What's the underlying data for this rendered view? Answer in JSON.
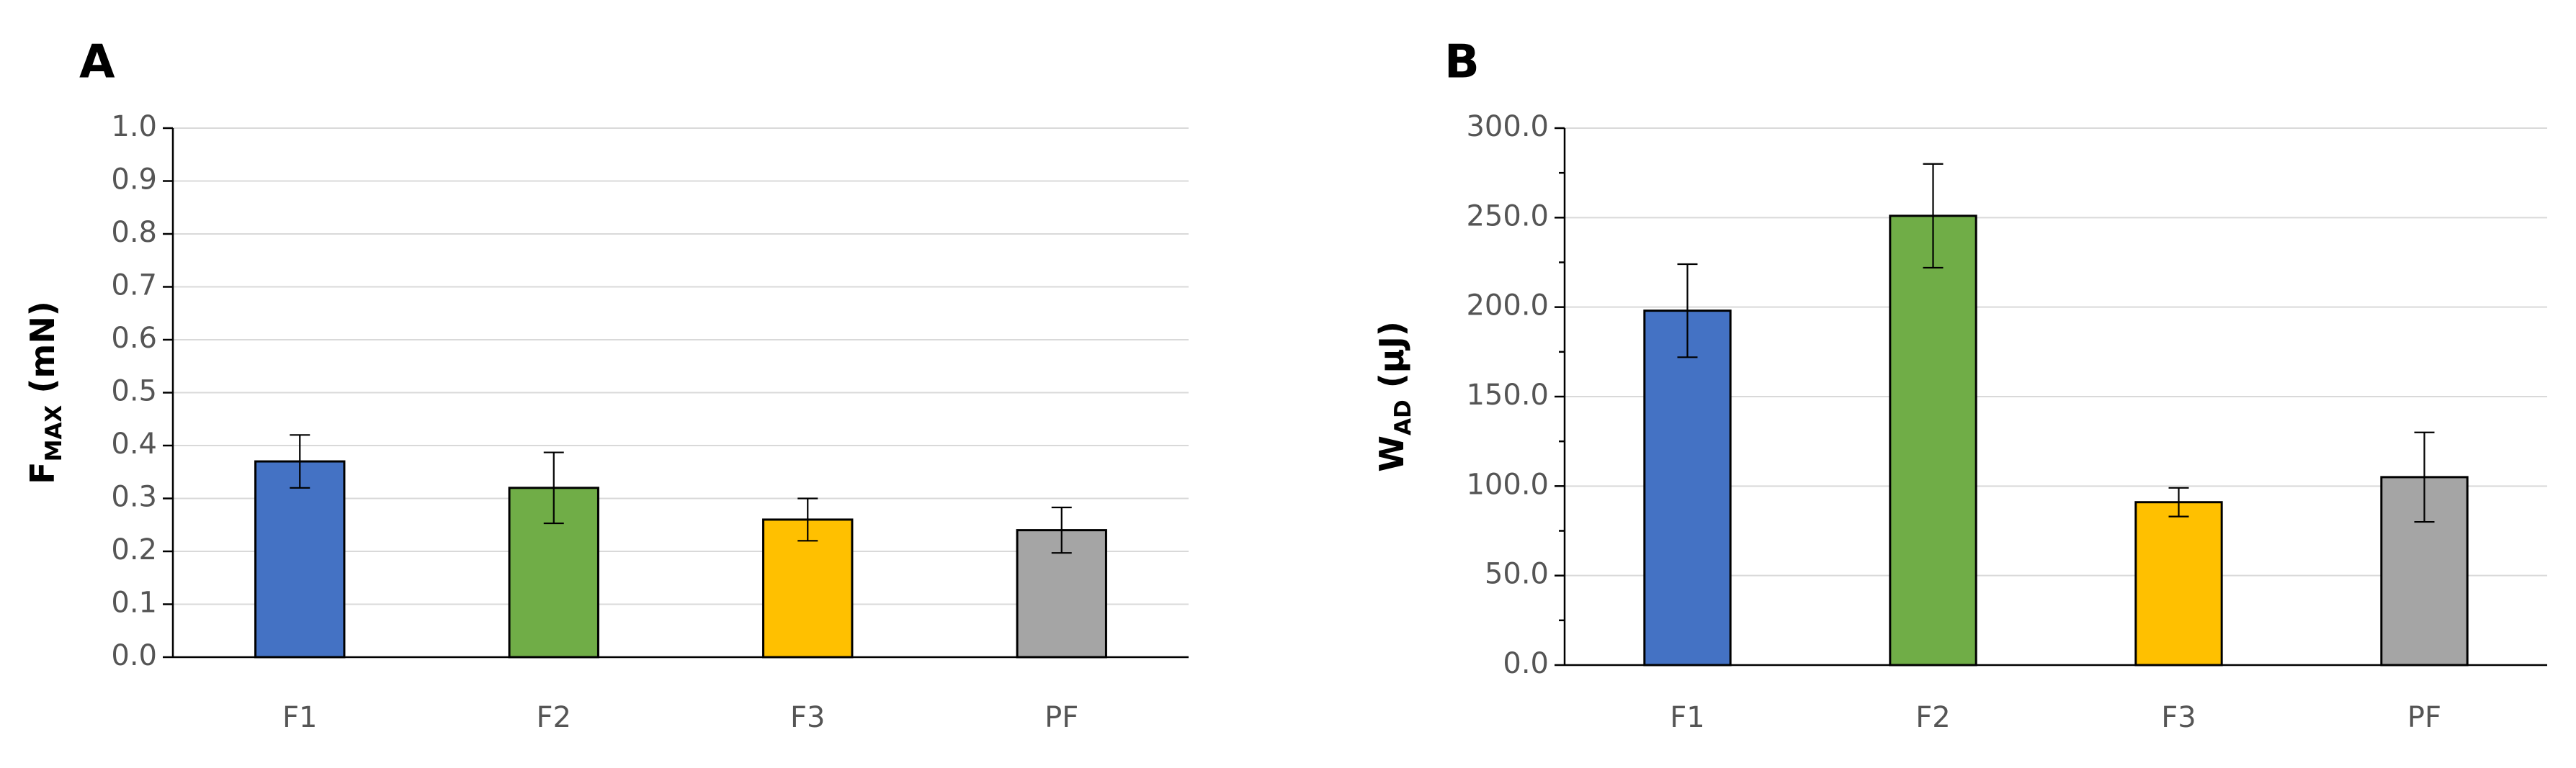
{
  "chart_data": [
    {
      "type": "bar",
      "panel_label": "A",
      "ylabel_main": "F",
      "ylabel_sub": "MAX",
      "ylabel_unit": " (mN)",
      "categories": [
        "F1",
        "F2",
        "F3",
        "PF"
      ],
      "values": [
        0.37,
        0.32,
        0.26,
        0.24
      ],
      "errors": [
        0.05,
        0.067,
        0.04,
        0.043
      ],
      "colors": [
        "#4472c4",
        "#70ad47",
        "#ffc000",
        "#a5a5a5"
      ],
      "ylim": [
        0,
        1.0
      ],
      "yticks": [
        "0.0",
        "0.1",
        "0.2",
        "0.3",
        "0.4",
        "0.5",
        "0.6",
        "0.7",
        "0.8",
        "0.9",
        "1.0"
      ],
      "grid": true
    },
    {
      "type": "bar",
      "panel_label": "B",
      "ylabel_main": "W",
      "ylabel_sub": "AD",
      "ylabel_unit": " (µJ)",
      "categories": [
        "F1",
        "F2",
        "F3",
        "PF"
      ],
      "values": [
        198,
        251,
        91,
        105
      ],
      "errors": [
        26,
        29,
        8,
        25
      ],
      "colors": [
        "#4472c4",
        "#70ad47",
        "#ffc000",
        "#a5a5a5"
      ],
      "ylim": [
        0,
        300
      ],
      "yticks": [
        "0.0",
        "50.0",
        "100.0",
        "150.0",
        "200.0",
        "250.0",
        "300.0"
      ],
      "grid": true
    }
  ]
}
